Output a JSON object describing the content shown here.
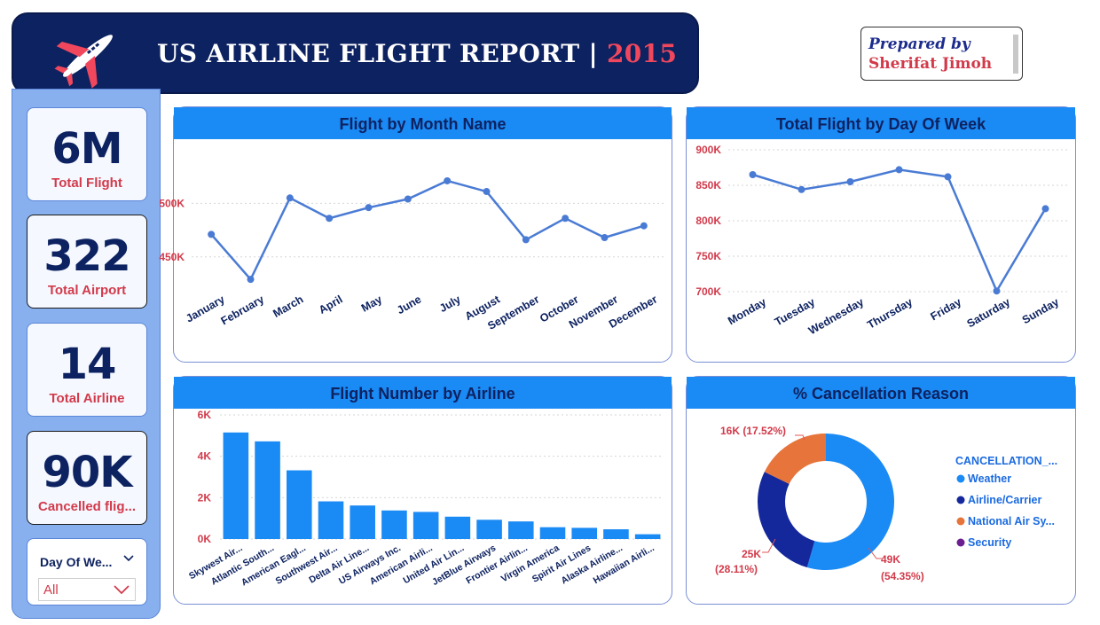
{
  "header": {
    "title": "US AIRLINE FLIGHT REPORT | ",
    "year": "2015",
    "prepared_by": "Prepared by",
    "author": "Sherifat Jimoh"
  },
  "kpis": [
    {
      "value": "6M",
      "label": "Total Flight"
    },
    {
      "value": "322",
      "label": "Total Airport"
    },
    {
      "value": "14",
      "label": "Total Airline"
    },
    {
      "value": "90K",
      "label": "Cancelled flig..."
    }
  ],
  "slicer": {
    "label": "Day Of We...",
    "value": "All"
  },
  "colors": {
    "navy": "#0d2260",
    "accent": "#1a8af5",
    "red": "#d23a4a",
    "line": "#4a7bd4"
  },
  "chart_data": [
    {
      "type": "line",
      "title": "Flight by Month Name",
      "x": [
        "January",
        "February",
        "March",
        "April",
        "May",
        "June",
        "July",
        "August",
        "September",
        "October",
        "November",
        "December"
      ],
      "series": [
        {
          "values": [
            471000,
            429000,
            505000,
            486000,
            496000,
            504000,
            521000,
            511000,
            466000,
            486000,
            468000,
            479000
          ]
        }
      ],
      "yticks": [
        "450K",
        "500K"
      ],
      "ylim": [
        420000,
        540000
      ]
    },
    {
      "type": "line",
      "title": "Total Flight by Day Of Week",
      "x": [
        "Monday",
        "Tuesday",
        "Wednesday",
        "Thursday",
        "Friday",
        "Saturday",
        "Sunday"
      ],
      "series": [
        {
          "values": [
            865000,
            844000,
            855000,
            872000,
            862000,
            701000,
            817000
          ]
        }
      ],
      "yticks": [
        "700K",
        "750K",
        "800K",
        "850K",
        "900K"
      ],
      "ylim": [
        700000,
        900000
      ]
    },
    {
      "type": "bar",
      "title": "Flight Number by Airline",
      "categories": [
        "Skywest Air...",
        "Atlantic South...",
        "American Eagl...",
        "Southwest Air...",
        "Delta Air Line...",
        "US Airways Inc.",
        "American Airli...",
        "United Air Lin...",
        "JetBlue Airways",
        "Frontier Airlin...",
        "Virgin America",
        "Spirit Air Lines",
        "Alaska Airline...",
        "Hawaiian Airli..."
      ],
      "values": [
        5150,
        4720,
        3320,
        1820,
        1620,
        1380,
        1310,
        1080,
        930,
        850,
        570,
        540,
        470,
        230
      ],
      "yticks": [
        "0K",
        "2K",
        "4K",
        "6K"
      ],
      "ylim": [
        0,
        6000
      ]
    },
    {
      "type": "pie",
      "title": "% Cancellation Reason",
      "legend_title": "CANCELLATION_...",
      "slices": [
        {
          "name": "Weather",
          "value": 49000,
          "label": "49K",
          "pct": "(54.35%)",
          "color": "#1a8af5"
        },
        {
          "name": "Airline/Carrier",
          "value": 25000,
          "label": "25K",
          "pct": "(28.11%)",
          "color": "#14279b"
        },
        {
          "name": "National Air Sy...",
          "value": 16000,
          "label": "16K (17.52%)",
          "pct": "",
          "color": "#e6743b"
        },
        {
          "name": "Security",
          "value": 0,
          "label": "",
          "pct": "",
          "color": "#6b1e8f"
        }
      ]
    }
  ]
}
